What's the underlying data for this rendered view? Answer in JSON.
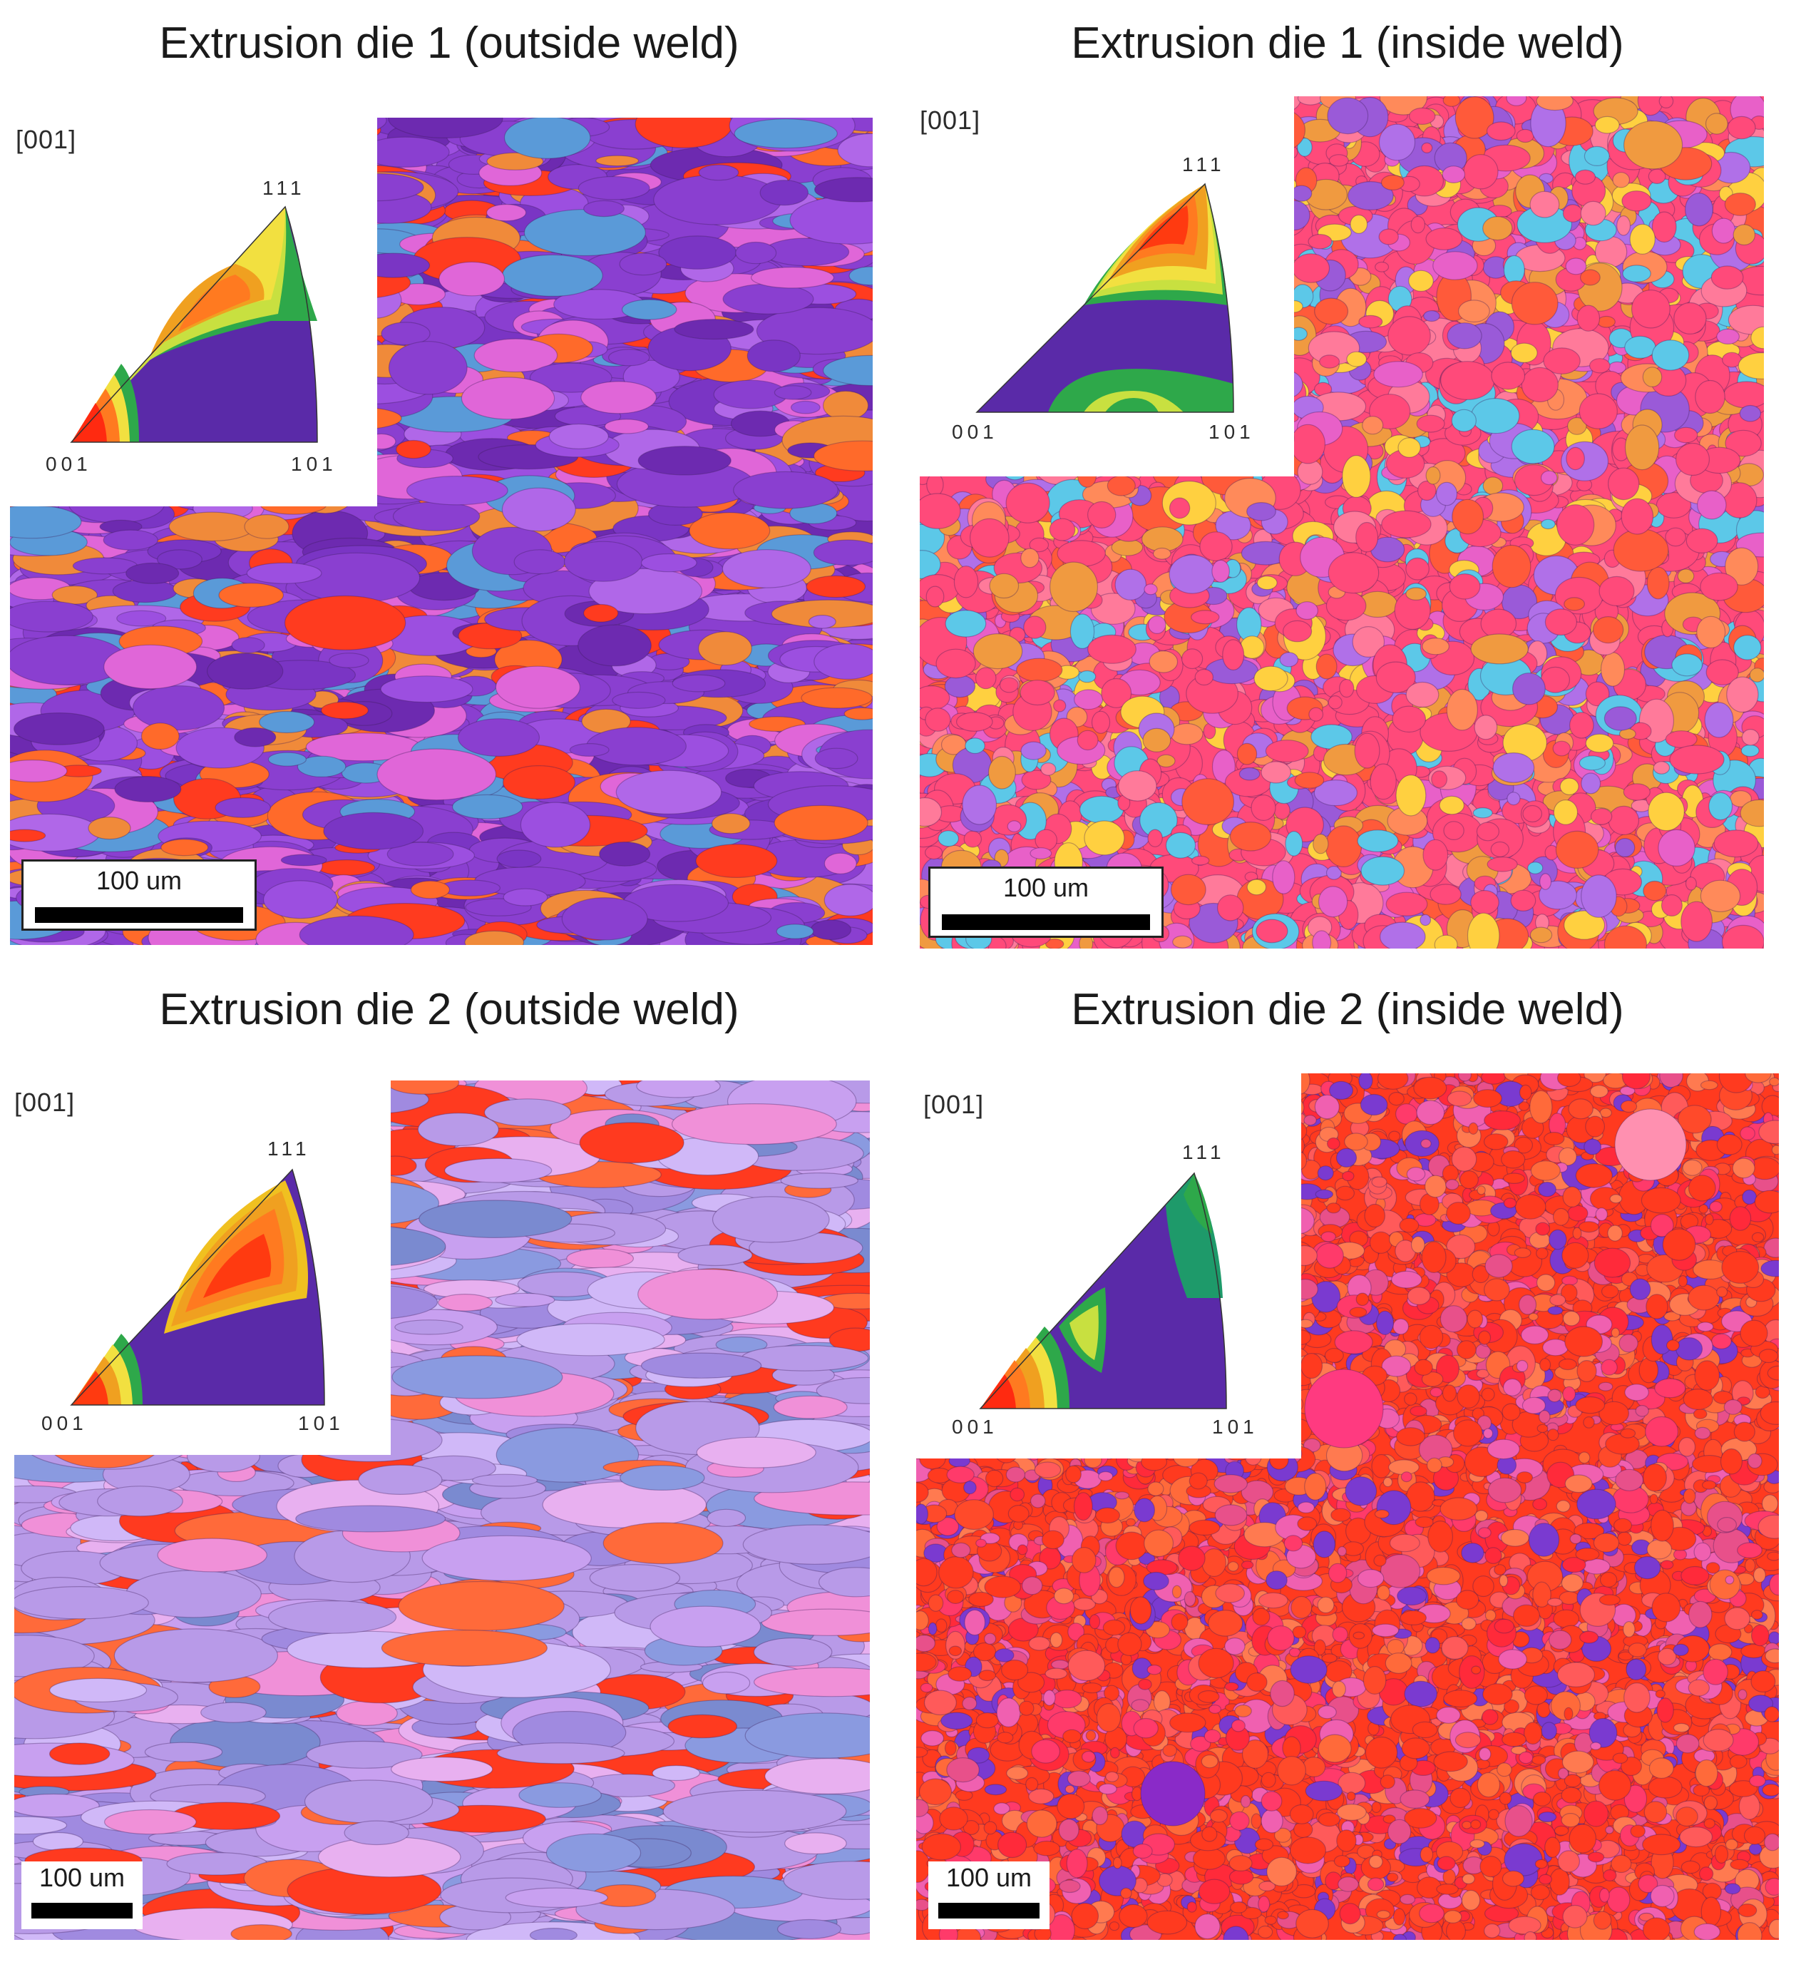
{
  "panels": [
    {
      "title": "Extrusion die 1 (outside weld)",
      "axis": "[001]",
      "poles": {
        "p111": "111",
        "p001": "001",
        "p101": "101"
      },
      "scale_bar": "100 um",
      "palette": [
        "#8a3fd0",
        "#7a35c4",
        "#9c4fe0",
        "#b067e8",
        "#ff3b1f",
        "#ff6a2a",
        "#e066d8",
        "#5a9ad8",
        "#6d2ab0",
        "#f08a3a"
      ]
    },
    {
      "title": "Extrusion die 1 (inside weld)",
      "axis": "[001]",
      "poles": {
        "p111": "111",
        "p001": "001",
        "p101": "101"
      },
      "scale_bar": "100 um",
      "palette": [
        "#ff4a7a",
        "#ff5a3a",
        "#b070e8",
        "#e860c8",
        "#5cc8e8",
        "#f09a40",
        "#ff7a9a",
        "#9a5ad8",
        "#ffd040",
        "#ff8a5a"
      ]
    },
    {
      "title": "Extrusion die 2 (outside weld)",
      "axis": "[001]",
      "poles": {
        "p111": "111",
        "p001": "001",
        "p101": "101"
      },
      "scale_bar": "100 um",
      "palette": [
        "#b89ae8",
        "#a08ae0",
        "#c8a0f0",
        "#e8b0f0",
        "#8a9ae0",
        "#ff3a1f",
        "#f090d8",
        "#d0b8f8",
        "#7a8ad0",
        "#ff6a3a"
      ]
    },
    {
      "title": "Extrusion die 2 (inside weld)",
      "axis": "[001]",
      "poles": {
        "p111": "111",
        "p001": "001",
        "p101": "101"
      },
      "scale_bar": "100 um",
      "palette": [
        "#ff3a1f",
        "#ff4a2a",
        "#ff5a5a",
        "#ff3a6a",
        "#e8508a",
        "#ff6a3a",
        "#7a3ad0",
        "#f060b0",
        "#ff2a3a",
        "#ff7a50"
      ]
    }
  ]
}
